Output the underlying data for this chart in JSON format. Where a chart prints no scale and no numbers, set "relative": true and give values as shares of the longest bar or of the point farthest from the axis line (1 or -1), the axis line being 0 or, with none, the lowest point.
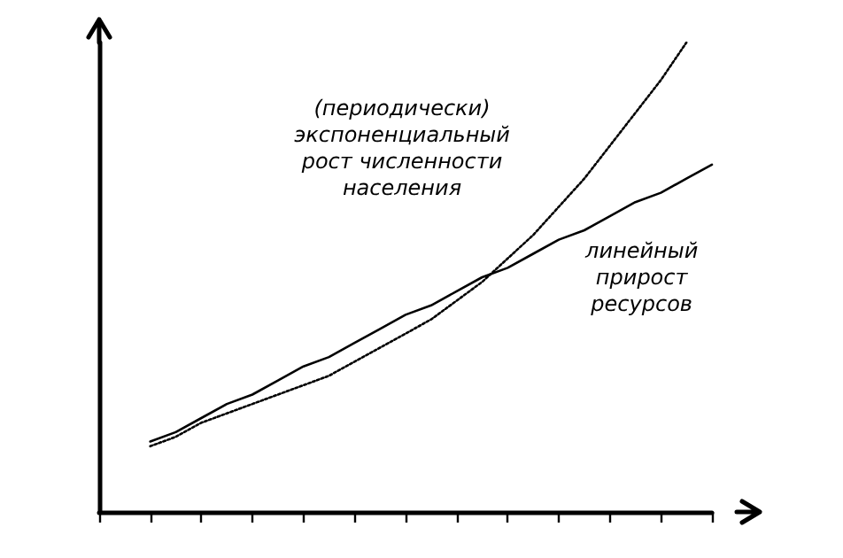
{
  "chart_data": {
    "type": "line",
    "relative": true,
    "grid": false,
    "legend": false,
    "marker": "none",
    "categories": [
      null,
      null,
      null,
      null,
      null,
      null,
      null,
      null,
      null,
      null,
      null,
      null,
      null,
      null,
      null,
      null,
      null,
      null,
      null,
      null,
      null,
      null,
      null,
      null,
      null
    ],
    "series": [
      {
        "name": "(периодически)\nэкспоненциальный\nрост численности\nнаселения",
        "color": "#000000",
        "line_style": "dotted",
        "values": [
          null,
          null,
          0.14,
          0.16,
          0.19,
          0.21,
          0.23,
          0.25,
          0.27,
          0.29,
          0.32,
          0.35,
          0.38,
          0.41,
          0.45,
          0.49,
          0.54,
          0.59,
          0.65,
          0.71,
          0.78,
          0.85,
          0.92,
          1.0,
          null
        ]
      },
      {
        "name": "линейный\nприрост\nресурсов",
        "color": "#000000",
        "line_style": "solid",
        "values": [
          null,
          null,
          0.15,
          0.17,
          0.2,
          0.23,
          0.25,
          0.28,
          0.31,
          0.33,
          0.36,
          0.39,
          0.42,
          0.44,
          0.47,
          0.5,
          0.52,
          0.55,
          0.58,
          0.6,
          0.63,
          0.66,
          0.68,
          0.71,
          0.74
        ]
      }
    ]
  }
}
